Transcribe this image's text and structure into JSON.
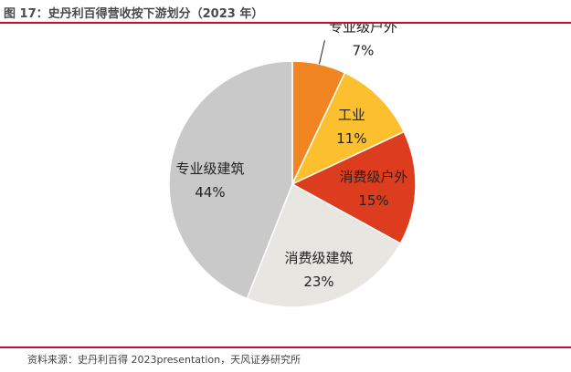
{
  "header": {
    "title": "图 17：史丹利百得营收按下游划分（2023 年）"
  },
  "footer": {
    "source": "资料来源：史丹利百得 2023presentation，天风证券研究所"
  },
  "colors": {
    "accent_rule": "#c8102e"
  },
  "chart_data": {
    "type": "pie",
    "title": "",
    "start_angle_deg": 0,
    "direction": "clockwise",
    "slices": [
      {
        "label": "专业级户外",
        "value": 7,
        "value_label": "7%",
        "color": "#f08522",
        "text_color": "#222222",
        "label_position": "outside"
      },
      {
        "label": "工业",
        "value": 11,
        "value_label": "11%",
        "color": "#fcc02e",
        "text_color": "#222222",
        "label_position": "inside"
      },
      {
        "label": "消费级户外",
        "value": 15,
        "value_label": "15%",
        "color": "#de3c1e",
        "text_color": "#222222",
        "label_position": "inside"
      },
      {
        "label": "消费级建筑",
        "value": 23,
        "value_label": "23%",
        "color": "#e8e6e1",
        "text_color": "#222222",
        "label_position": "inside"
      },
      {
        "label": "专业级建筑",
        "value": 44,
        "value_label": "44%",
        "color": "#c9c9c9",
        "text_color": "#222222",
        "label_position": "inside"
      }
    ]
  }
}
